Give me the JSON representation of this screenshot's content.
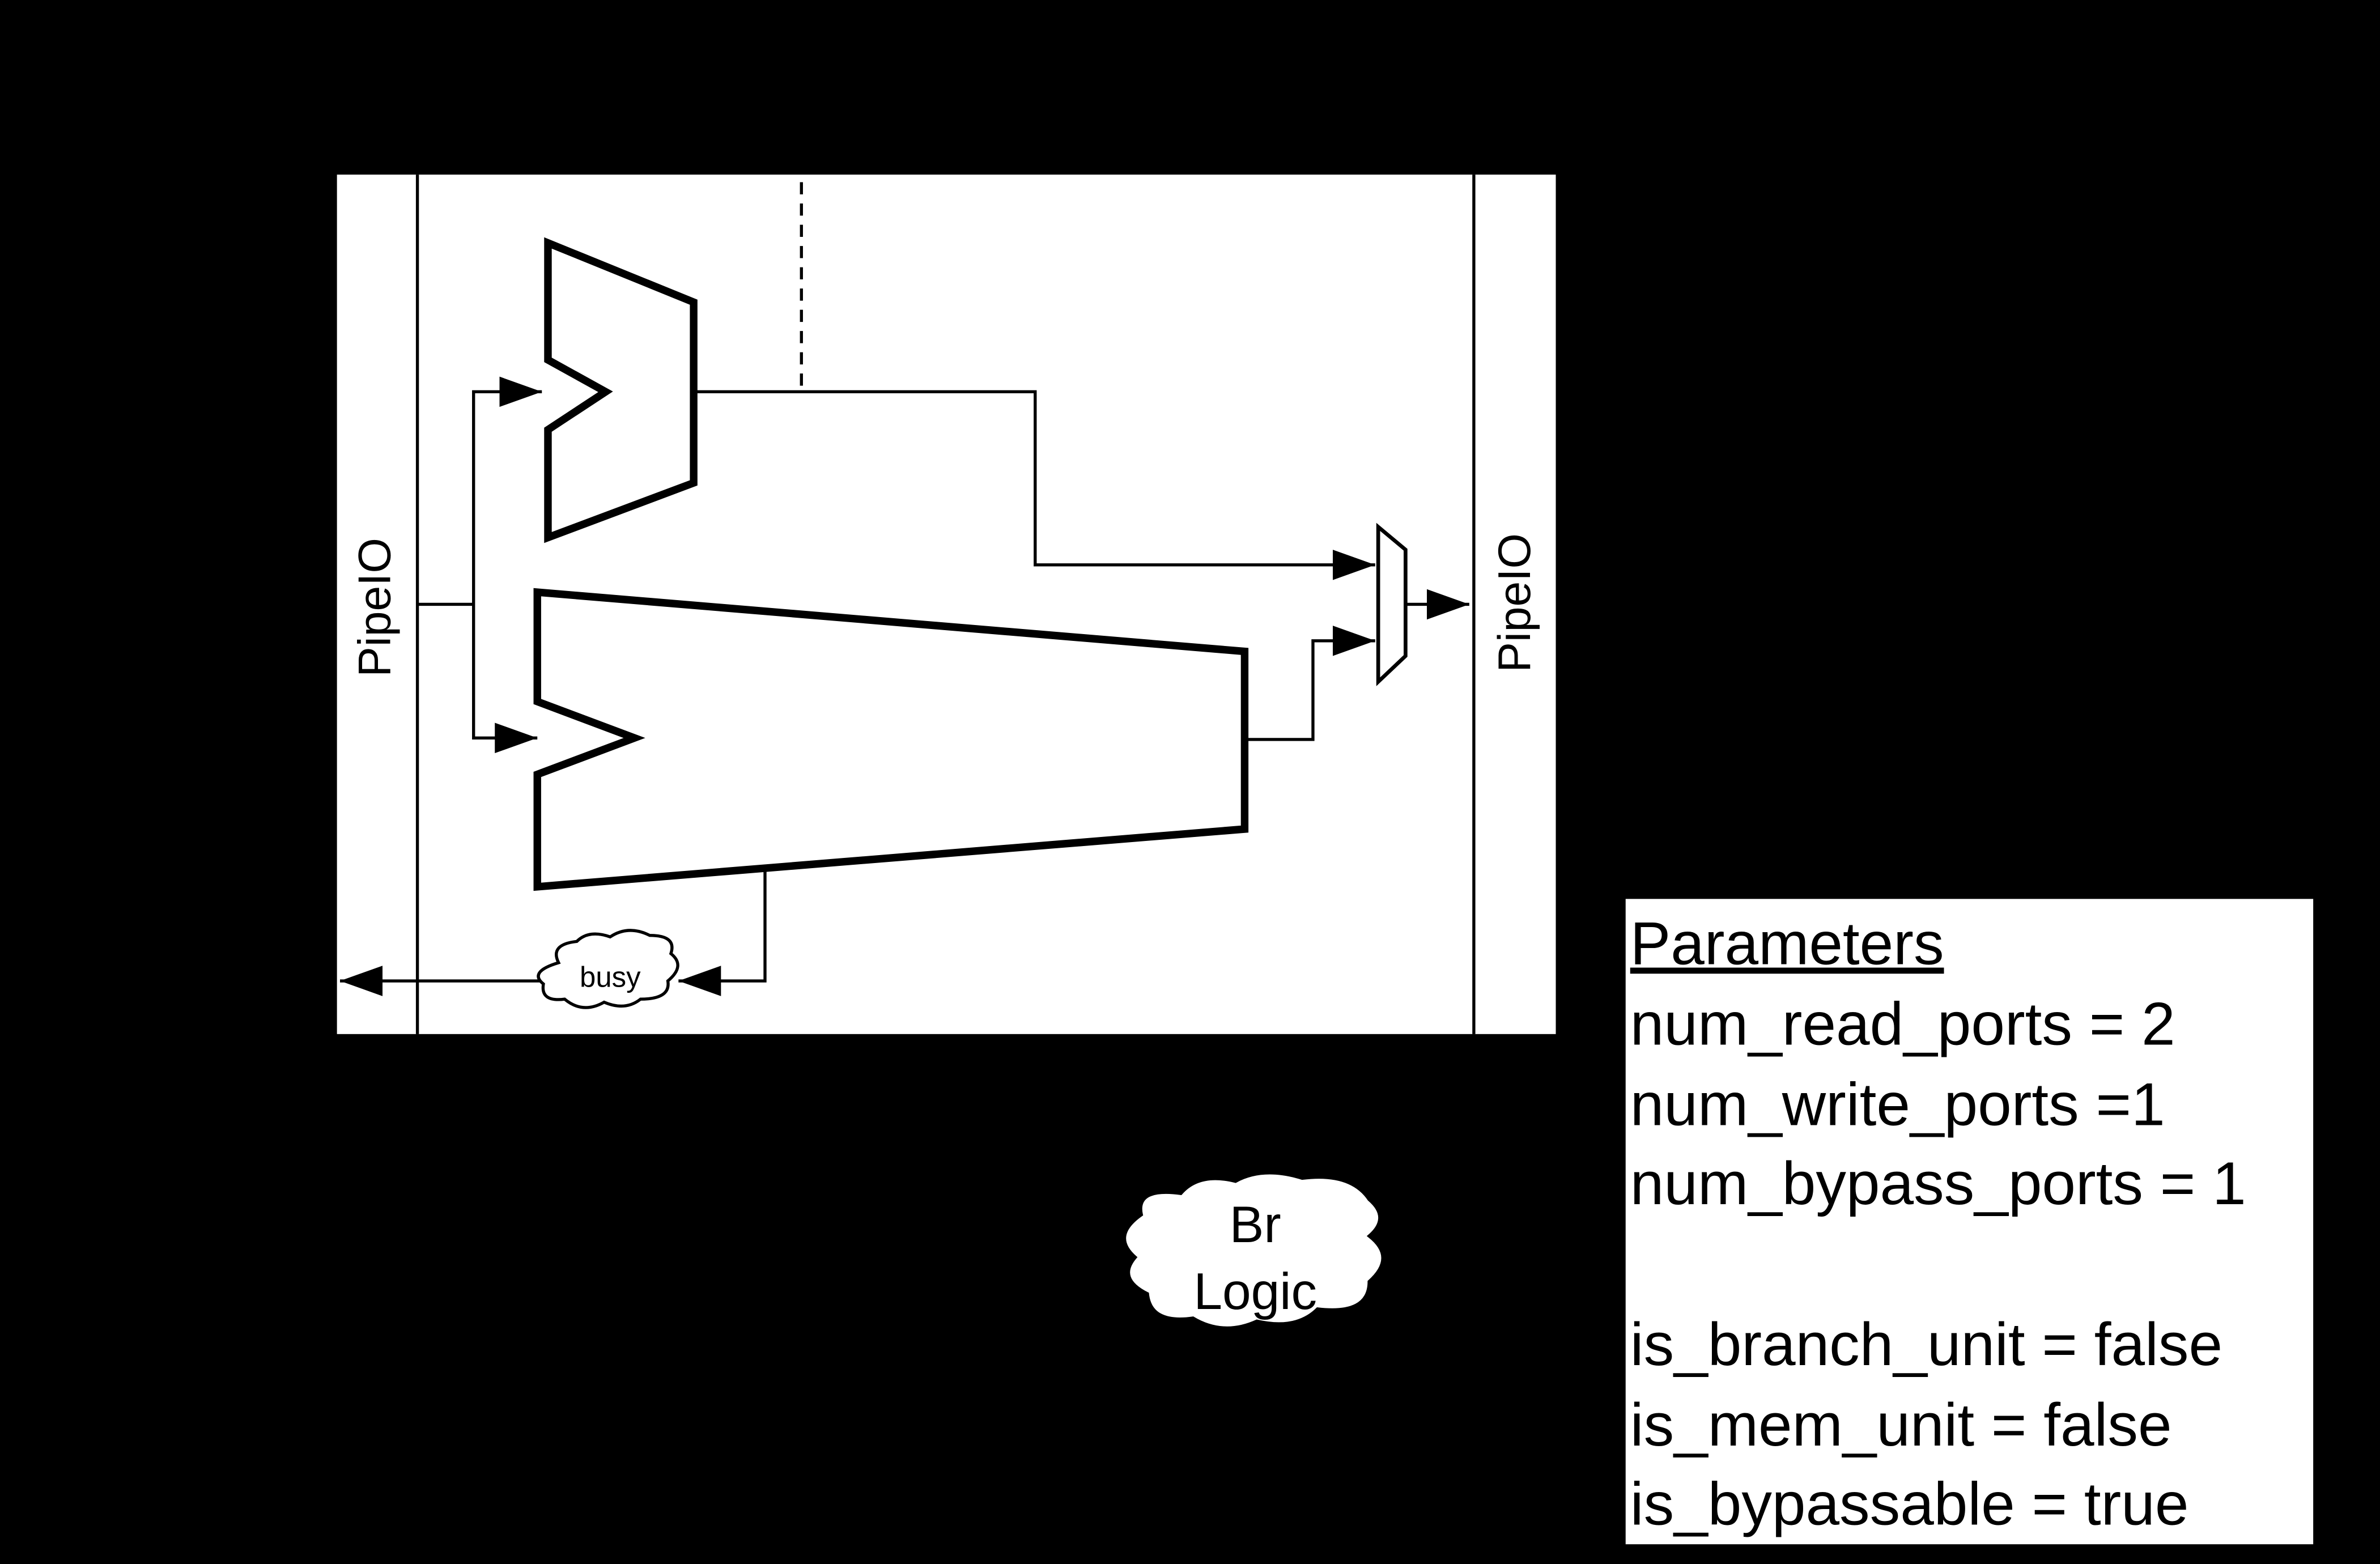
{
  "labels": {
    "pipeio_left": "PipeIO",
    "pipeio_right": "PipeIO",
    "busy": "busy",
    "br_logic": [
      "Br",
      "Logic"
    ]
  },
  "parameters": {
    "title": "Parameters",
    "lines": [
      "num_read_ports = 2",
      "num_write_ports =1",
      "num_bypass_ports = 1"
    ],
    "flags": [
      "is_branch_unit = false",
      "is_mem_unit = false",
      "is_bypassable = true"
    ]
  }
}
